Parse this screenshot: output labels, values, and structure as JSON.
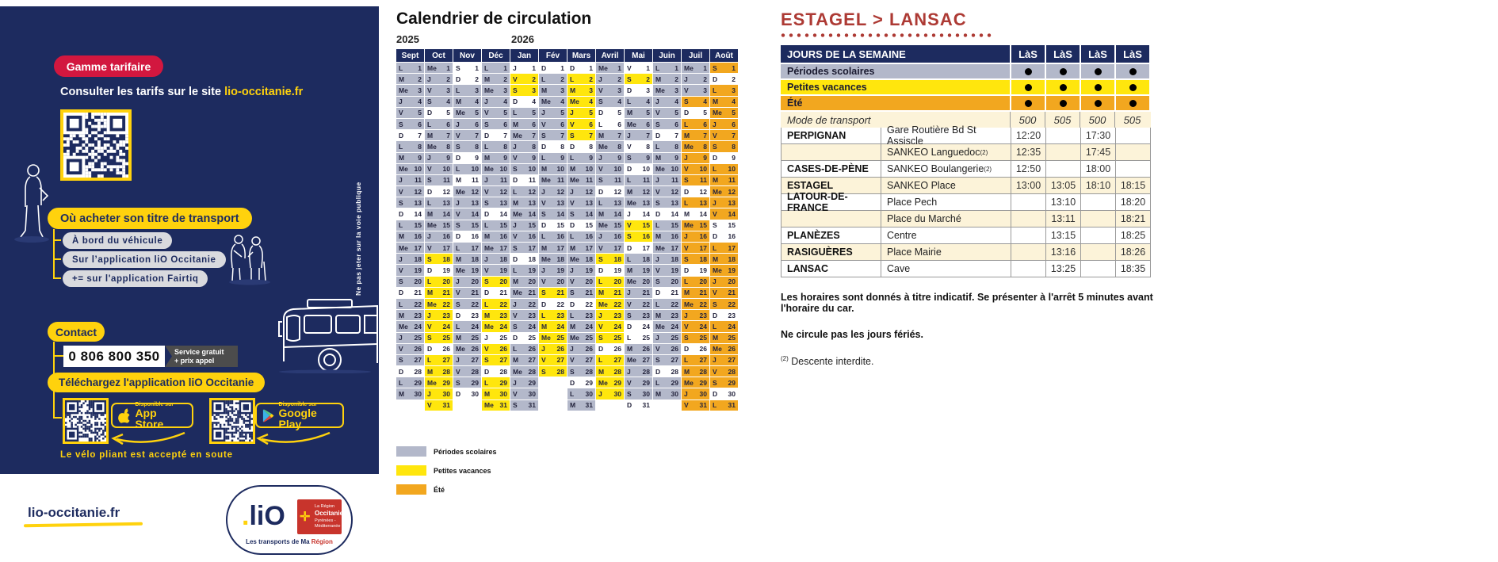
{
  "colors": {
    "navy": "#1d2b5f",
    "scolaire": "#b3b8ca",
    "vacances": "#ffe60d",
    "ete": "#f2a71f",
    "none": "#ffffff",
    "cream": "#fcf3d9",
    "red_title": "#ad3a34",
    "red_pill": "#d2173f",
    "yellow": "#ffd20d"
  },
  "sidebar": {
    "tariff_pill": "Gamme tarifaire",
    "tariff_text": "Consulter les tarifs sur le site ",
    "tariff_link": "lio-occitanie.fr",
    "buy_title": "Où acheter son titre de transport",
    "buy_options": [
      "À bord du véhicule",
      "Sur l’application liO Occitanie",
      "+= sur l'application Fairtiq"
    ],
    "contact_pill": "Contact",
    "phone": "0 806 800 350",
    "phone_note_line1": "Service gratuit",
    "phone_note_line2": "+ prix appel",
    "download_pill": "Téléchargez l'application liO Occitanie",
    "store_small": "Disponible sur",
    "appstore_big": "App Store",
    "gplay_big": "Google Play",
    "bike_note": "Le vélo pliant est accepté en soute",
    "vertical_note": "Ne pas jeter sur la voie publique"
  },
  "footer": {
    "site": "lio-occitanie.fr",
    "logo_dot": ".",
    "logo_lio": "liO",
    "logo_region_line1": "La Région",
    "logo_region_name": "Occitanie",
    "logo_region_line2": "Pyrénées - Méditerranée",
    "tagline_prefix": "Les transports de Ma ",
    "tagline_region": "Région"
  },
  "calendar": {
    "title": "Calendrier de circulation",
    "year_left": "2025",
    "year_right": "2026",
    "day_letters": [
      "L",
      "M",
      "Me",
      "J",
      "V",
      "S",
      "D"
    ],
    "legend": [
      {
        "label": "Périodes scolaires",
        "key": "s"
      },
      {
        "label": "Petites vacances",
        "key": "v"
      },
      {
        "label": "Été",
        "key": "e"
      }
    ],
    "months": [
      {
        "name": "Sept",
        "first_dow": 0,
        "days": 30,
        "pattern": "sssssswsssssswsssssswsssssswss"
      },
      {
        "name": "Oct",
        "first_dow": 2,
        "days": 31,
        "pattern": "sssswsssssswsssssvwvvvvvvwvvvvv"
      },
      {
        "name": "Nov",
        "first_dow": 5,
        "days": 30,
        "pattern": "wwsssssswswsssswsssssswssssssw"
      },
      {
        "name": "Déc",
        "first_dow": 0,
        "days": 31,
        "pattern": "sssssswsssssswsssssvwvvvwvvwvvv"
      },
      {
        "name": "Jan",
        "first_dow": 3,
        "days": 31,
        "pattern": "wvvwsssssswsssssswsssssswssssss"
      },
      {
        "name": "Fév",
        "first_dow": 6,
        "days": 28,
        "pattern": "wsssssswsssssswsssssvwvvvvvv"
      },
      {
        "name": "Mars",
        "first_dow": 6,
        "days": 31,
        "pattern": "wvvvvvvwsssssswsssssswsssssswss"
      },
      {
        "name": "Avril",
        "first_dow": 2,
        "days": 30,
        "pattern": "sssswwssssswsssssvwvvvvvvwvvvv"
      },
      {
        "name": "Mai",
        "first_dow": 4,
        "days": 31,
        "pattern": "wvwsssswswssswvvwsssssswwsssssw"
      },
      {
        "name": "Juin",
        "first_dow": 0,
        "days": 30,
        "pattern": "sssssswsssssswsssssswsssssswss"
      },
      {
        "name": "Juil",
        "first_dow": 2,
        "days": 31,
        "pattern": "ssseweeeeeeweweeeeweeeeeeweeeee"
      },
      {
        "name": "Août",
        "first_dow": 5,
        "days": 31,
        "pattern": "eweeeeeeweeeeewweeeeeeweeeeeewe"
      }
    ]
  },
  "timetable": {
    "title": "ESTAGEL > LANSAC",
    "header_label": "JOURS DE LA SEMAINE",
    "day_cols": [
      "LàS",
      "LàS",
      "LàS",
      "LàS"
    ],
    "period_rows": [
      {
        "label": "Périodes scolaires",
        "key": "s",
        "dots": [
          true,
          true,
          true,
          true
        ]
      },
      {
        "label": "Petites vacances",
        "key": "v",
        "dots": [
          true,
          true,
          true,
          true
        ]
      },
      {
        "label": "Été",
        "key": "e",
        "dots": [
          true,
          true,
          true,
          true
        ]
      }
    ],
    "mode_row": {
      "label": "Mode de transport",
      "values": [
        "500",
        "505",
        "500",
        "505"
      ]
    },
    "stops": [
      {
        "city": "PERPIGNAN",
        "stop": "Gare Routière Bd St Assiscle",
        "sup": "",
        "times": [
          "12:20",
          "",
          "17:30",
          ""
        ]
      },
      {
        "city": "",
        "stop": "SANKEO Languedoc",
        "sup": "(2)",
        "times": [
          "12:35",
          "",
          "17:45",
          ""
        ]
      },
      {
        "city": "CASES-DE-PÈNE",
        "stop": "SANKEO Boulangerie",
        "sup": "(2)",
        "times": [
          "12:50",
          "",
          "18:00",
          ""
        ]
      },
      {
        "city": "ESTAGEL",
        "stop": "SANKEO Place",
        "sup": "",
        "times": [
          "13:00",
          "13:05",
          "18:10",
          "18:15"
        ]
      },
      {
        "city": "LATOUR-DE-FRANCE",
        "stop": "Place Pech",
        "sup": "",
        "times": [
          "",
          "13:10",
          "",
          "18:20"
        ]
      },
      {
        "city": "",
        "stop": "Place du Marché",
        "sup": "",
        "times": [
          "",
          "13:11",
          "",
          "18:21"
        ]
      },
      {
        "city": "PLANÈZES",
        "stop": "Centre",
        "sup": "",
        "times": [
          "",
          "13:15",
          "",
          "18:25"
        ]
      },
      {
        "city": "RASIGUÈRES",
        "stop": "Place Mairie",
        "sup": "",
        "times": [
          "",
          "13:16",
          "",
          "18:26"
        ]
      },
      {
        "city": "LANSAC",
        "stop": "Cave",
        "sup": "",
        "times": [
          "",
          "13:25",
          "",
          "18:35"
        ]
      }
    ],
    "notes": [
      "Les horaires sont donnés à titre indicatif. Se présenter à l'arrêt 5 minutes avant l'horaire du car.",
      "Ne circule pas les jours fériés."
    ],
    "footnote_sup": "(2)",
    "footnote_text": " Descente interdite."
  }
}
